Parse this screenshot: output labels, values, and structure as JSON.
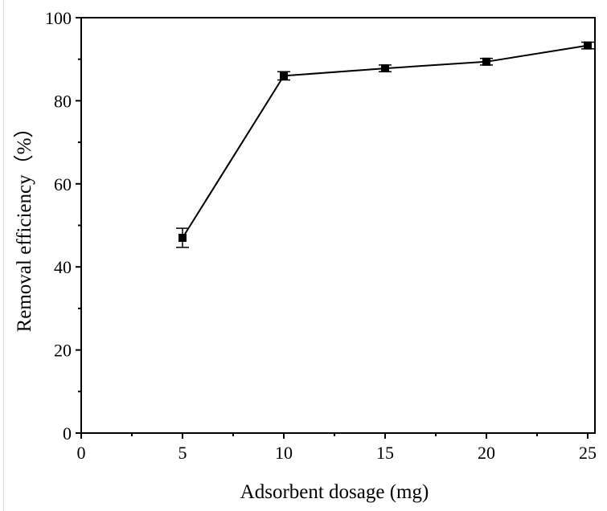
{
  "chart_data": {
    "type": "line",
    "title": "",
    "xlabel": "Adsorbent dosage (mg)",
    "ylabel": "Removal efficiency（%）",
    "xlim": [
      0,
      25
    ],
    "ylim": [
      0,
      100
    ],
    "xticks": [
      0,
      5,
      10,
      15,
      20,
      25
    ],
    "yticks": [
      0,
      20,
      40,
      60,
      80,
      100
    ],
    "grid": false,
    "legend": null,
    "marker": "square",
    "line_color": "#000000",
    "series": [
      {
        "name": "Removal efficiency",
        "x": [
          5,
          10,
          15,
          20,
          25
        ],
        "values": [
          47.0,
          86.0,
          87.8,
          89.4,
          93.3
        ],
        "error": [
          2.3,
          1.0,
          0.8,
          0.8,
          0.8
        ]
      }
    ]
  },
  "labels": {
    "x_axis_title": "Adsorbent dosage (mg)",
    "y_axis_title": "Removal efficiency（%）",
    "x_ticks": [
      "0",
      "5",
      "10",
      "15",
      "20",
      "25"
    ],
    "y_ticks": [
      "0",
      "20",
      "40",
      "60",
      "80",
      "100"
    ]
  }
}
